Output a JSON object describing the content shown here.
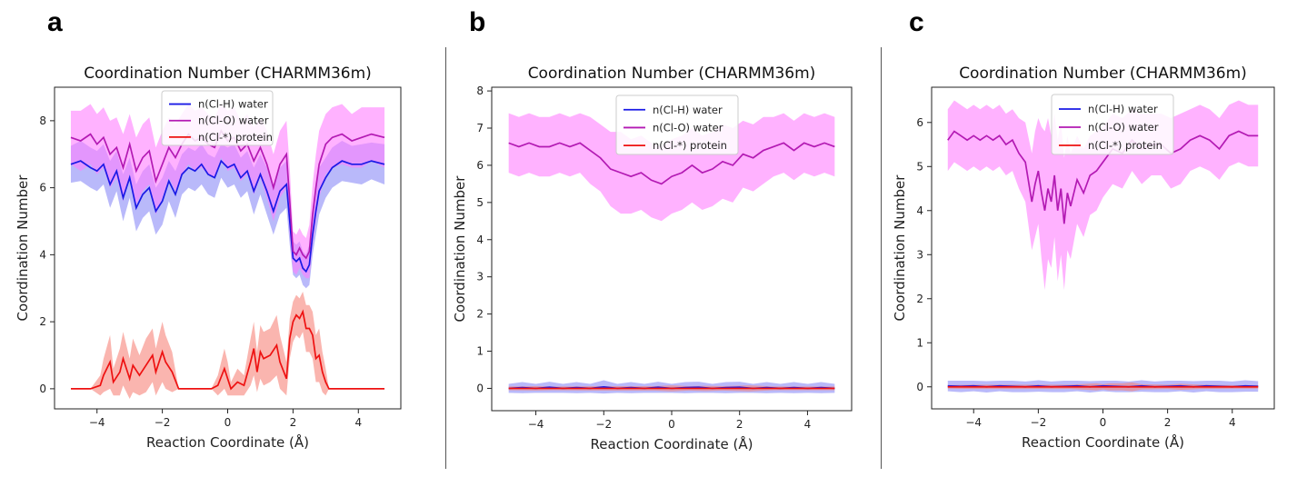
{
  "panels": [
    {
      "letter": "a"
    },
    {
      "letter": "b"
    },
    {
      "letter": "c"
    }
  ],
  "colors": {
    "h_line": "#1a1ae6",
    "h_fill": "#7f7ff5",
    "o_line": "#b31ab3",
    "o_fill": "#ff7fff",
    "p_line": "#ee1111",
    "p_fill": "#f7847a"
  },
  "chart_data": [
    {
      "type": "line",
      "title": "Coordination Number (CHARMM36m)",
      "xlabel": "Reaction Coordinate (Å)",
      "ylabel": "Coordination Number",
      "xlim": [
        -5.3,
        5.3
      ],
      "ylim": [
        -0.6,
        9.0
      ],
      "xticks": [
        -4,
        -2,
        0,
        2,
        4
      ],
      "yticks": [
        0,
        2,
        4,
        6,
        8
      ],
      "legend": {
        "position": "top-center"
      },
      "series": [
        {
          "name": "n(Cl-H) water",
          "key": "h",
          "x": [
            -4.8,
            -4.5,
            -4.2,
            -4.0,
            -3.8,
            -3.6,
            -3.4,
            -3.2,
            -3.0,
            -2.8,
            -2.6,
            -2.4,
            -2.2,
            -2.0,
            -1.8,
            -1.6,
            -1.4,
            -1.2,
            -1.0,
            -0.8,
            -0.6,
            -0.4,
            -0.2,
            0.0,
            0.2,
            0.4,
            0.6,
            0.8,
            1.0,
            1.2,
            1.4,
            1.6,
            1.8,
            1.9,
            2.0,
            2.1,
            2.2,
            2.3,
            2.4,
            2.5,
            2.6,
            2.7,
            2.8,
            3.0,
            3.2,
            3.5,
            3.8,
            4.1,
            4.4,
            4.8
          ],
          "y": [
            6.7,
            6.8,
            6.6,
            6.5,
            6.7,
            6.1,
            6.5,
            5.7,
            6.3,
            5.4,
            5.8,
            6.0,
            5.3,
            5.6,
            6.2,
            5.8,
            6.4,
            6.6,
            6.5,
            6.7,
            6.4,
            6.3,
            6.8,
            6.6,
            6.7,
            6.3,
            6.5,
            5.9,
            6.4,
            5.9,
            5.3,
            5.9,
            6.1,
            5.0,
            3.9,
            3.8,
            3.9,
            3.6,
            3.5,
            3.7,
            4.6,
            5.3,
            5.9,
            6.3,
            6.6,
            6.8,
            6.7,
            6.7,
            6.8,
            6.7
          ],
          "band": [
            0.55,
            0.6,
            0.6,
            0.6,
            0.6,
            0.7,
            0.6,
            0.7,
            0.6,
            0.7,
            0.7,
            0.7,
            0.7,
            0.7,
            0.6,
            0.7,
            0.6,
            0.6,
            0.6,
            0.6,
            0.6,
            0.6,
            0.5,
            0.6,
            0.6,
            0.6,
            0.6,
            0.7,
            0.6,
            0.7,
            0.7,
            0.7,
            0.7,
            0.7,
            0.5,
            0.5,
            0.5,
            0.5,
            0.5,
            0.6,
            0.6,
            0.7,
            0.7,
            0.6,
            0.6,
            0.6,
            0.55,
            0.6,
            0.55,
            0.6
          ]
        },
        {
          "name": "n(Cl-O) water",
          "key": "o",
          "x": [
            -4.8,
            -4.5,
            -4.2,
            -4.0,
            -3.8,
            -3.6,
            -3.4,
            -3.2,
            -3.0,
            -2.8,
            -2.6,
            -2.4,
            -2.2,
            -2.0,
            -1.8,
            -1.6,
            -1.4,
            -1.2,
            -1.0,
            -0.8,
            -0.6,
            -0.4,
            -0.2,
            0.0,
            0.2,
            0.4,
            0.6,
            0.8,
            1.0,
            1.2,
            1.4,
            1.6,
            1.8,
            1.9,
            2.0,
            2.1,
            2.2,
            2.3,
            2.4,
            2.5,
            2.6,
            2.7,
            2.8,
            3.0,
            3.2,
            3.5,
            3.8,
            4.1,
            4.4,
            4.8
          ],
          "y": [
            7.5,
            7.4,
            7.6,
            7.3,
            7.5,
            7.0,
            7.2,
            6.6,
            7.3,
            6.5,
            6.9,
            7.1,
            6.2,
            6.7,
            7.2,
            6.9,
            7.3,
            7.6,
            7.4,
            7.5,
            7.3,
            7.2,
            7.7,
            7.4,
            7.5,
            7.1,
            7.3,
            6.8,
            7.2,
            6.7,
            6.0,
            6.7,
            7.0,
            5.6,
            4.1,
            4.0,
            4.2,
            4.0,
            3.9,
            4.1,
            5.2,
            6.0,
            6.7,
            7.3,
            7.5,
            7.6,
            7.4,
            7.5,
            7.6,
            7.5
          ],
          "band": [
            0.8,
            0.9,
            0.9,
            0.9,
            0.9,
            1.0,
            0.9,
            1.0,
            0.9,
            1.0,
            1.0,
            1.0,
            1.0,
            1.0,
            0.9,
            1.0,
            0.9,
            0.9,
            0.9,
            0.9,
            0.9,
            0.9,
            0.8,
            0.9,
            0.9,
            0.9,
            0.9,
            1.0,
            0.9,
            1.0,
            1.0,
            1.0,
            1.0,
            1.0,
            0.6,
            0.6,
            0.6,
            0.6,
            0.6,
            0.8,
            0.9,
            1.0,
            1.0,
            0.9,
            0.9,
            0.9,
            0.8,
            0.9,
            0.8,
            0.9
          ]
        },
        {
          "name": "n(Cl-*) protein",
          "key": "p",
          "x": [
            -4.8,
            -4.2,
            -3.9,
            -3.8,
            -3.6,
            -3.5,
            -3.3,
            -3.2,
            -3.0,
            -2.9,
            -2.7,
            -2.5,
            -2.3,
            -2.2,
            -2.0,
            -1.9,
            -1.7,
            -1.5,
            -1.3,
            -0.5,
            -0.3,
            -0.1,
            0.0,
            0.1,
            0.3,
            0.5,
            0.7,
            0.8,
            0.9,
            1.0,
            1.1,
            1.3,
            1.5,
            1.6,
            1.8,
            1.9,
            2.0,
            2.1,
            2.2,
            2.3,
            2.4,
            2.5,
            2.6,
            2.7,
            2.8,
            2.9,
            3.0,
            3.1,
            3.3,
            4.8
          ],
          "y": [
            0.0,
            0.0,
            0.1,
            0.4,
            0.8,
            0.2,
            0.5,
            0.9,
            0.3,
            0.7,
            0.4,
            0.7,
            1.0,
            0.5,
            1.1,
            0.8,
            0.5,
            0.0,
            0.0,
            0.0,
            0.1,
            0.6,
            0.3,
            0.0,
            0.2,
            0.1,
            0.8,
            1.2,
            0.5,
            1.1,
            0.9,
            1.0,
            1.3,
            0.8,
            0.3,
            1.5,
            2.0,
            2.2,
            2.1,
            2.3,
            1.8,
            1.8,
            1.6,
            0.9,
            1.0,
            0.5,
            0.2,
            0.0,
            0.0,
            0.0
          ],
          "band": [
            0.0,
            0.0,
            0.3,
            0.5,
            0.8,
            0.4,
            0.7,
            0.8,
            0.6,
            0.8,
            0.6,
            0.8,
            0.8,
            0.7,
            0.9,
            0.8,
            0.6,
            0.0,
            0.0,
            0.0,
            0.3,
            0.6,
            0.5,
            0.2,
            0.4,
            0.3,
            0.7,
            0.8,
            0.6,
            0.8,
            0.8,
            0.8,
            0.9,
            0.8,
            0.5,
            0.6,
            0.6,
            0.6,
            0.6,
            0.6,
            0.7,
            0.7,
            0.7,
            0.7,
            0.8,
            0.6,
            0.4,
            0.0,
            0.0,
            0.0
          ]
        }
      ]
    },
    {
      "type": "line",
      "title": "Coordination Number (CHARMM36m)",
      "xlabel": "Reaction Coordinate (Å)",
      "ylabel": "Coordination Number",
      "xlim": [
        -5.3,
        5.3
      ],
      "ylim": [
        -0.6,
        8.1
      ],
      "xticks": [
        -4,
        -2,
        0,
        2,
        4
      ],
      "yticks": [
        0,
        1,
        2,
        3,
        4,
        5,
        6,
        7,
        8
      ],
      "legend": {
        "position": "top-center"
      },
      "series": [
        {
          "name": "n(Cl-H) water",
          "key": "h",
          "x": [
            -4.8,
            -4.4,
            -4.0,
            -3.6,
            -3.2,
            -2.8,
            -2.4,
            -2.0,
            -1.6,
            -1.2,
            -0.8,
            -0.4,
            0.0,
            0.4,
            0.8,
            1.2,
            1.6,
            2.0,
            2.4,
            2.8,
            3.2,
            3.6,
            4.0,
            4.4,
            4.8
          ],
          "y": [
            0.0,
            0.02,
            0.0,
            0.03,
            0.0,
            0.02,
            0.0,
            0.04,
            0.0,
            0.02,
            0.0,
            0.03,
            0.0,
            0.02,
            0.03,
            0.0,
            0.02,
            0.03,
            0.0,
            0.02,
            0.0,
            0.02,
            0.0,
            0.02,
            0.0
          ],
          "band": [
            0.12,
            0.15,
            0.12,
            0.15,
            0.12,
            0.15,
            0.12,
            0.18,
            0.12,
            0.15,
            0.12,
            0.15,
            0.12,
            0.15,
            0.15,
            0.12,
            0.15,
            0.15,
            0.12,
            0.15,
            0.12,
            0.15,
            0.12,
            0.15,
            0.12
          ]
        },
        {
          "name": "n(Cl-O) water",
          "key": "o",
          "x": [
            -4.8,
            -4.5,
            -4.2,
            -3.9,
            -3.6,
            -3.3,
            -3.0,
            -2.7,
            -2.4,
            -2.1,
            -1.8,
            -1.5,
            -1.2,
            -0.9,
            -0.6,
            -0.3,
            0.0,
            0.3,
            0.6,
            0.9,
            1.2,
            1.5,
            1.8,
            2.1,
            2.4,
            2.7,
            3.0,
            3.3,
            3.6,
            3.9,
            4.2,
            4.5,
            4.8
          ],
          "y": [
            6.6,
            6.5,
            6.6,
            6.5,
            6.5,
            6.6,
            6.5,
            6.6,
            6.4,
            6.2,
            5.9,
            5.8,
            5.7,
            5.8,
            5.6,
            5.5,
            5.7,
            5.8,
            6.0,
            5.8,
            5.9,
            6.1,
            6.0,
            6.3,
            6.2,
            6.4,
            6.5,
            6.6,
            6.4,
            6.6,
            6.5,
            6.6,
            6.5
          ],
          "band": [
            0.8,
            0.8,
            0.8,
            0.8,
            0.8,
            0.8,
            0.8,
            0.8,
            0.9,
            0.9,
            1.0,
            1.1,
            1.0,
            1.0,
            1.0,
            1.0,
            1.0,
            1.0,
            1.0,
            1.0,
            1.0,
            1.0,
            1.0,
            0.9,
            0.9,
            0.9,
            0.8,
            0.8,
            0.8,
            0.8,
            0.8,
            0.8,
            0.8
          ]
        },
        {
          "name": "n(Cl-*) protein",
          "key": "p",
          "x": [
            -4.8,
            -4.0,
            -3.5,
            -2.0,
            -1.2,
            -0.5,
            0.0,
            0.5,
            1.0,
            1.5,
            2.3,
            3.0,
            4.0,
            4.8
          ],
          "y": [
            0.0,
            0.0,
            0.0,
            0.0,
            0.0,
            0.0,
            0.0,
            0.0,
            0.0,
            0.0,
            0.0,
            0.0,
            0.0,
            0.0
          ],
          "band": [
            0.05,
            0.06,
            0.05,
            0.06,
            0.06,
            0.06,
            0.08,
            0.06,
            0.07,
            0.06,
            0.08,
            0.05,
            0.05,
            0.05
          ]
        }
      ]
    },
    {
      "type": "line",
      "title": "Coordination Number (CHARMM36m)",
      "xlabel": "Reaction Coordinate (Å)",
      "ylabel": "Coordination Number",
      "xlim": [
        -5.3,
        5.3
      ],
      "ylim": [
        -0.5,
        6.8
      ],
      "xticks": [
        -4,
        -2,
        0,
        2,
        4
      ],
      "yticks": [
        0,
        1,
        2,
        3,
        4,
        5,
        6
      ],
      "legend": {
        "position": "top-center"
      },
      "series": [
        {
          "name": "n(Cl-H) water",
          "key": "h",
          "x": [
            -4.8,
            -4.4,
            -4.0,
            -3.6,
            -3.2,
            -2.8,
            -2.4,
            -2.0,
            -1.6,
            -1.2,
            -0.8,
            -0.4,
            0.0,
            0.4,
            0.8,
            1.2,
            1.6,
            2.0,
            2.4,
            2.8,
            3.2,
            3.6,
            4.0,
            4.4,
            4.8
          ],
          "y": [
            0.02,
            0.01,
            0.02,
            0.0,
            0.02,
            0.01,
            0.0,
            0.02,
            0.0,
            0.01,
            0.02,
            0.0,
            0.02,
            0.01,
            0.0,
            0.02,
            0.0,
            0.01,
            0.02,
            0.0,
            0.02,
            0.01,
            0.0,
            0.02,
            0.01
          ],
          "band": [
            0.12,
            0.13,
            0.12,
            0.13,
            0.12,
            0.13,
            0.12,
            0.13,
            0.12,
            0.13,
            0.12,
            0.13,
            0.12,
            0.13,
            0.12,
            0.13,
            0.12,
            0.13,
            0.12,
            0.13,
            0.12,
            0.13,
            0.12,
            0.13,
            0.12
          ]
        },
        {
          "name": "n(Cl-O) water",
          "key": "o",
          "x": [
            -4.8,
            -4.6,
            -4.4,
            -4.2,
            -4.0,
            -3.8,
            -3.6,
            -3.4,
            -3.2,
            -3.0,
            -2.8,
            -2.6,
            -2.4,
            -2.2,
            -2.1,
            -2.0,
            -1.9,
            -1.8,
            -1.7,
            -1.6,
            -1.5,
            -1.4,
            -1.3,
            -1.2,
            -1.1,
            -1.0,
            -0.8,
            -0.6,
            -0.4,
            -0.2,
            0.0,
            0.3,
            0.6,
            0.9,
            1.2,
            1.5,
            1.8,
            2.1,
            2.4,
            2.7,
            3.0,
            3.3,
            3.6,
            3.9,
            4.2,
            4.5,
            4.8
          ],
          "y": [
            5.6,
            5.8,
            5.7,
            5.6,
            5.7,
            5.6,
            5.7,
            5.6,
            5.7,
            5.5,
            5.6,
            5.3,
            5.1,
            4.2,
            4.6,
            4.9,
            4.4,
            4.0,
            4.5,
            4.2,
            4.8,
            4.0,
            4.5,
            3.7,
            4.4,
            4.1,
            4.7,
            4.4,
            4.8,
            4.9,
            5.1,
            5.4,
            5.3,
            5.6,
            5.4,
            5.5,
            5.5,
            5.3,
            5.4,
            5.6,
            5.7,
            5.6,
            5.4,
            5.7,
            5.8,
            5.7,
            5.7
          ],
          "band": [
            0.7,
            0.7,
            0.7,
            0.7,
            0.7,
            0.7,
            0.7,
            0.7,
            0.7,
            0.7,
            0.7,
            0.8,
            0.9,
            1.1,
            1.2,
            1.2,
            1.5,
            1.8,
            1.6,
            1.5,
            1.4,
            1.6,
            1.5,
            1.5,
            1.3,
            1.2,
            1.0,
            1.0,
            0.9,
            0.9,
            0.8,
            0.8,
            0.8,
            0.7,
            0.8,
            0.7,
            0.7,
            0.8,
            0.8,
            0.7,
            0.7,
            0.7,
            0.7,
            0.7,
            0.7,
            0.7,
            0.7
          ]
        },
        {
          "name": "n(Cl-*) protein",
          "key": "p",
          "x": [
            -4.8,
            -4.0,
            -3.0,
            -2.0,
            -1.0,
            -0.2,
            0.0,
            0.2,
            0.6,
            0.9,
            1.2,
            2.0,
            2.4,
            3.0,
            4.0,
            4.8
          ],
          "y": [
            0.0,
            0.0,
            0.0,
            0.0,
            0.0,
            0.0,
            0.0,
            0.0,
            0.0,
            0.0,
            0.0,
            0.0,
            0.0,
            0.0,
            0.0,
            0.0
          ],
          "band": [
            0.04,
            0.05,
            0.05,
            0.05,
            0.05,
            0.08,
            0.06,
            0.08,
            0.08,
            0.1,
            0.06,
            0.05,
            0.07,
            0.05,
            0.04,
            0.04
          ]
        }
      ]
    }
  ]
}
